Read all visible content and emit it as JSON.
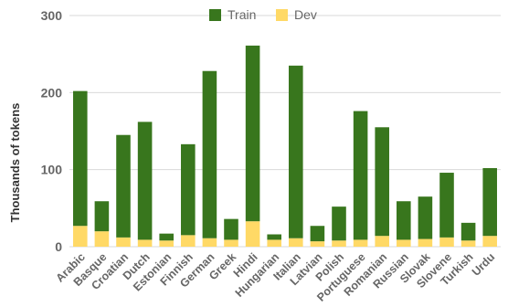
{
  "chart_data": {
    "type": "bar",
    "stacked": true,
    "ylabel": "Thousands of tokens",
    "ylim": [
      0,
      300
    ],
    "yticks": [
      0,
      100,
      200,
      300
    ],
    "grid": true,
    "legend_position": "top-center",
    "categories": [
      "Arabic",
      "Basque",
      "Croatian",
      "Dutch",
      "Estonian",
      "Finnish",
      "German",
      "Greek",
      "Hindi",
      "Hungarian",
      "Italian",
      "Latvian",
      "Polish",
      "Portuguese",
      "Romanian",
      "Russian",
      "Slovak",
      "Slovene",
      "Turkish",
      "Urdu"
    ],
    "series": [
      {
        "name": "Dev",
        "color": "#ffd966",
        "values": [
          27,
          20,
          12,
          9,
          8,
          15,
          11,
          9,
          33,
          9,
          11,
          7,
          8,
          9,
          14,
          9,
          10,
          12,
          8,
          14
        ]
      },
      {
        "name": "Train",
        "color": "#38761d",
        "values": [
          175,
          39,
          133,
          153,
          9,
          118,
          217,
          27,
          228,
          7,
          224,
          20,
          44,
          167,
          141,
          50,
          55,
          84,
          23,
          88
        ]
      }
    ]
  }
}
